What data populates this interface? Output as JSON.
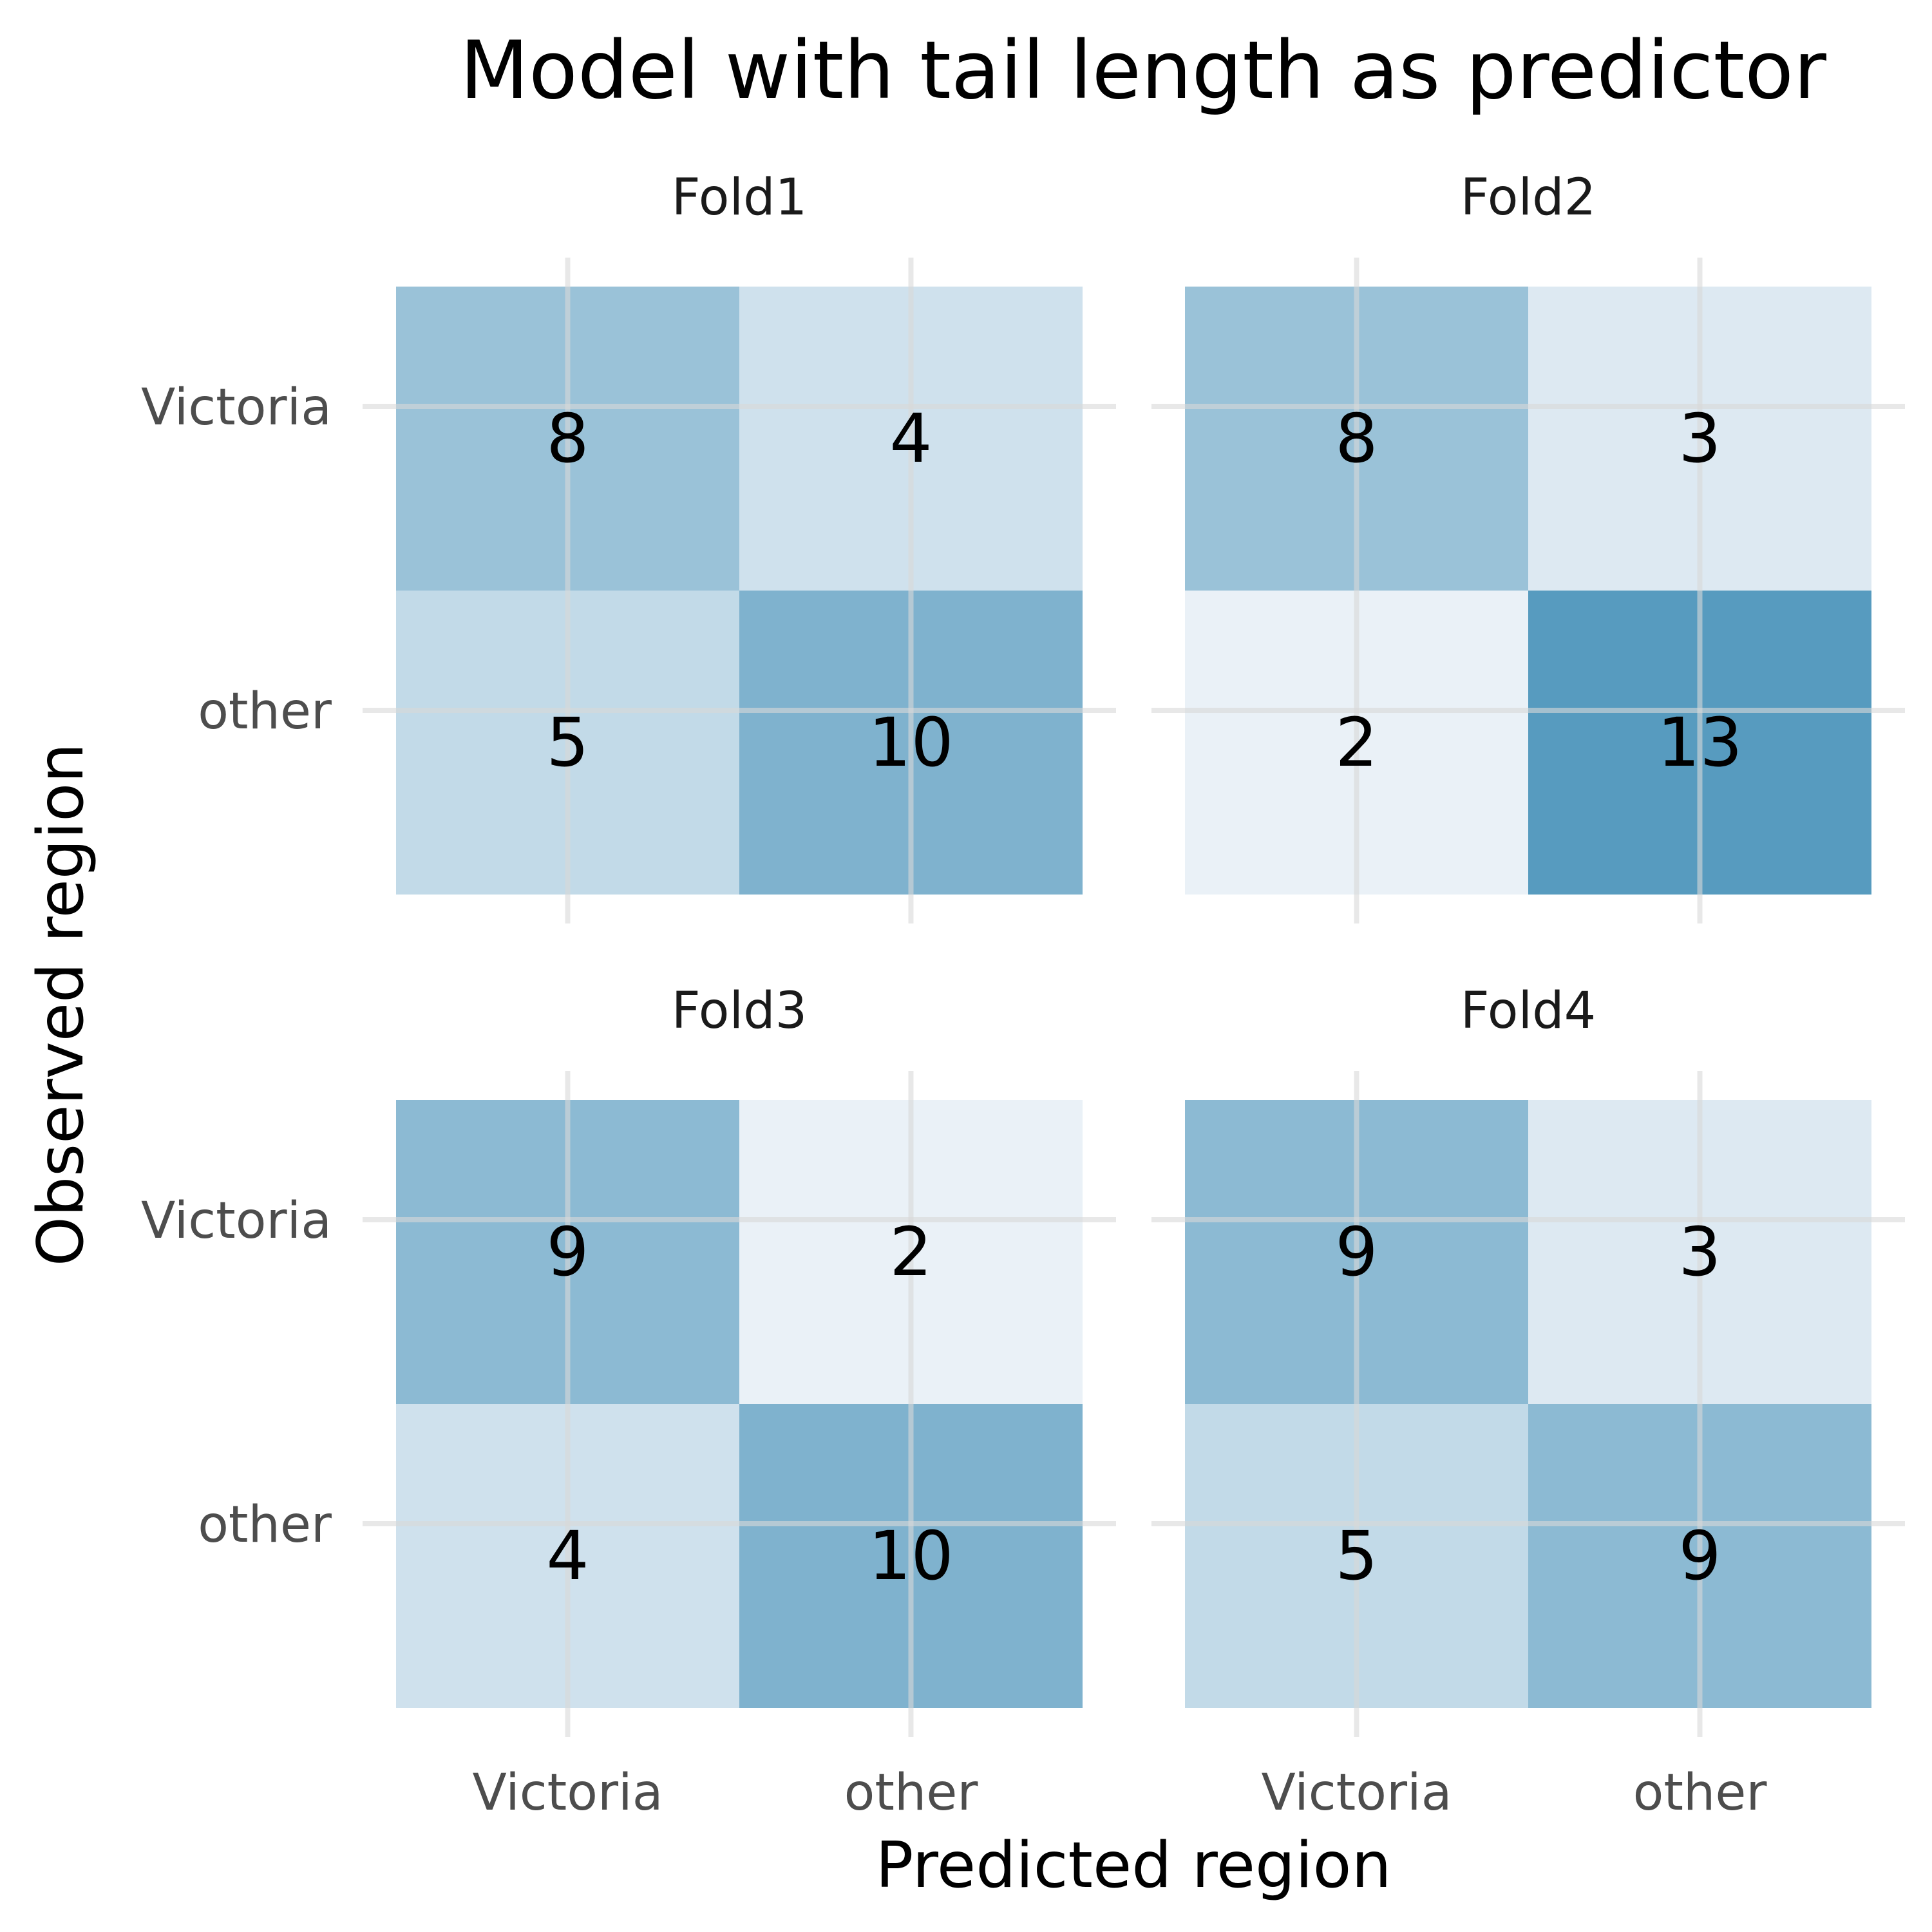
{
  "chart_data": {
    "type": "heatmap",
    "title": "Model with tail length as predictor",
    "xlabel": "Predicted region",
    "ylabel": "Observed region",
    "x_categories": [
      "Victoria",
      "other"
    ],
    "y_categories": [
      "Victoria",
      "other"
    ],
    "color_low": "#eaf1f7",
    "color_high": "#579bbf",
    "value_range": [
      2,
      13
    ],
    "panels": [
      {
        "name": "Fold1",
        "matrix": [
          [
            8,
            4
          ],
          [
            5,
            10
          ]
        ]
      },
      {
        "name": "Fold2",
        "matrix": [
          [
            8,
            3
          ],
          [
            2,
            13
          ]
        ]
      },
      {
        "name": "Fold3",
        "matrix": [
          [
            9,
            2
          ],
          [
            4,
            10
          ]
        ]
      },
      {
        "name": "Fold4",
        "matrix": [
          [
            9,
            3
          ],
          [
            5,
            9
          ]
        ]
      }
    ]
  }
}
